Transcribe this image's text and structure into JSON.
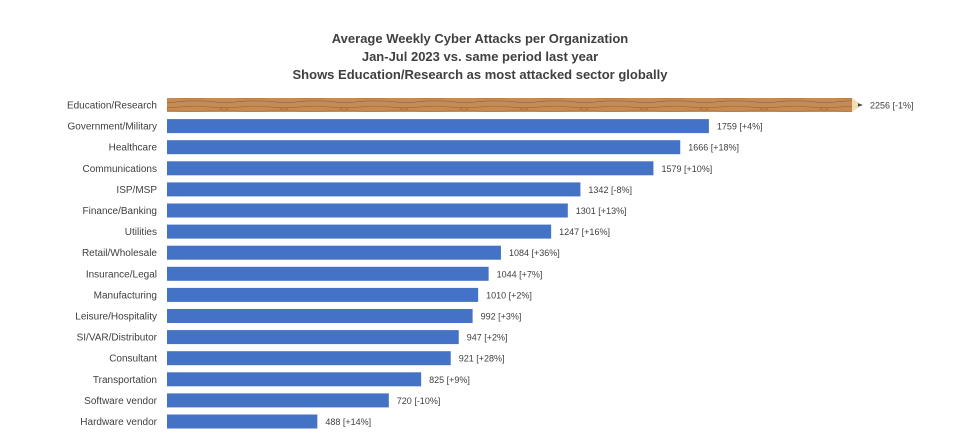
{
  "chart_data": {
    "type": "bar",
    "orientation": "horizontal",
    "title_lines": [
      "Average Weekly Cyber Attacks per Organization",
      "Jan-Jul 2023 vs. same period last year",
      "Shows Education/Research as most attacked sector globally"
    ],
    "categories": [
      "Education/Research",
      "Government/Military",
      "Healthcare",
      "Communications",
      "ISP/MSP",
      "Finance/Banking",
      "Utilities",
      "Retail/Wholesale",
      "Insurance/Legal",
      "Manufacturing",
      "Leisure/Hospitality",
      "SI/VAR/Distributor",
      "Consultant",
      "Transportation",
      "Software vendor",
      "Hardware vendor"
    ],
    "values": [
      2256,
      1759,
      1666,
      1579,
      1342,
      1301,
      1247,
      1084,
      1044,
      1010,
      992,
      947,
      921,
      825,
      720,
      488
    ],
    "data_labels": [
      "2256 [-1%]",
      "1759 [+4%]",
      "1666 [+18%]",
      "1579 [+10%]",
      "1342 [-8%]",
      "1301 [+13%]",
      "1247 [+16%]",
      "1084 [+36%]",
      "1044 [+7%]",
      "1010 [+2%]",
      "992 [+3%]",
      "947 [+2%]",
      "921 [+28%]",
      "825 [+9%]",
      "720 [-10%]",
      "488 [+14%]"
    ],
    "highlight_category": "Education/Research",
    "xlim": [
      0,
      2256
    ],
    "legend": "none",
    "grid": false,
    "colors": {
      "bar": "#4472c4",
      "highlight_wood": "#c68b52",
      "highlight_wood_dark": "#9c6233",
      "pencil_tip": "#f2dcb4",
      "pencil_lead": "#444444",
      "label_text": "#404040",
      "title_text": "#404040"
    }
  }
}
